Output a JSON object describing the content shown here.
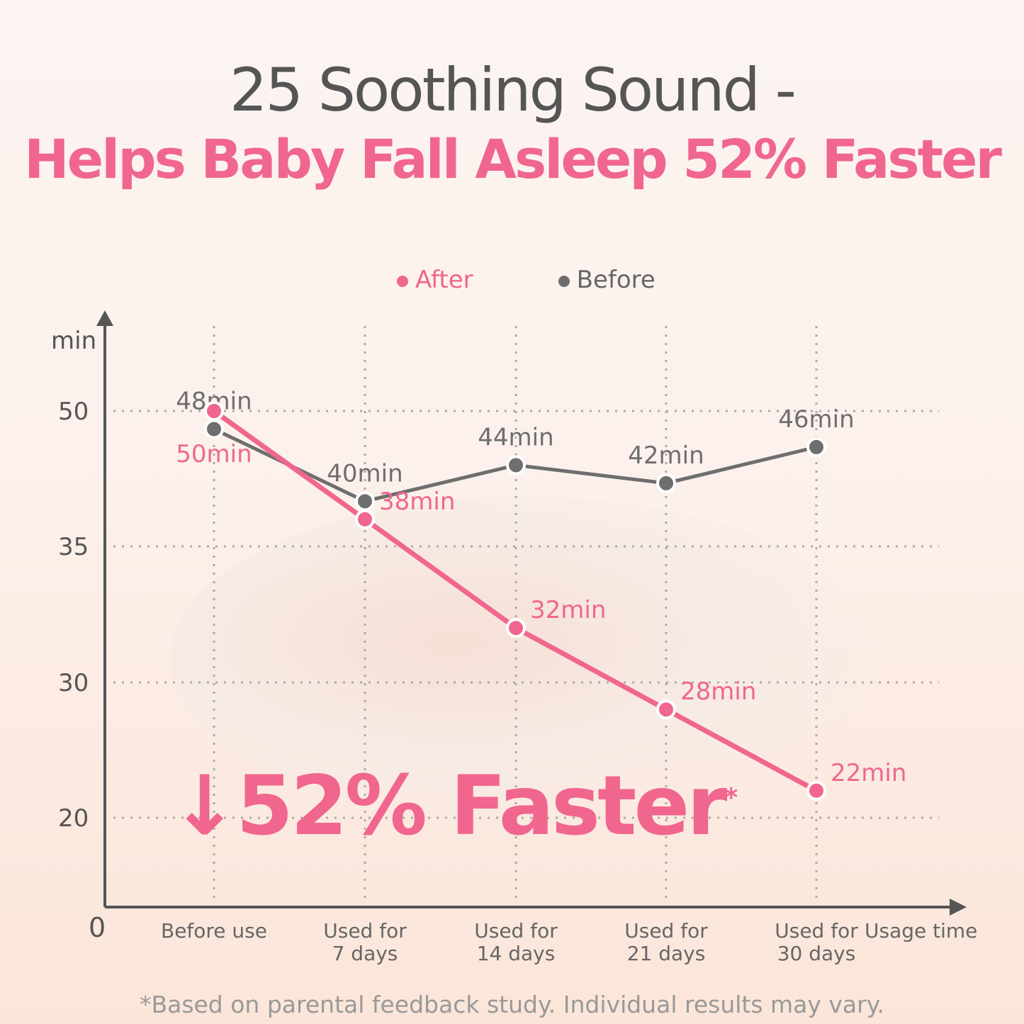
{
  "title_line1": "25 Soothing Sound -",
  "title_line2": "Helps Baby Fall Asleep 52% Faster",
  "legend": [
    {
      "label": "After",
      "color": "#f0668e"
    },
    {
      "label": "Before",
      "color": "#6e6e6e"
    }
  ],
  "callout": {
    "text": "↓52% Faster",
    "mark": "*"
  },
  "footnote": "*Based on parental feedback study. Individual results may vary.",
  "chart_data": {
    "type": "line",
    "ylabel": "min",
    "xlabel": "Usage time",
    "categories": [
      "Before use",
      "Used for\n7 days",
      "Used for\n14 days",
      "Used for\n21 days",
      "Used for\n30 days"
    ],
    "y_ticks": [
      0,
      20,
      30,
      35,
      50
    ],
    "grid": true,
    "legend_position": "top-center",
    "series": [
      {
        "name": "After",
        "color": "#f0668e",
        "values": [
          50,
          38,
          32,
          28,
          22
        ],
        "labels": [
          "50min",
          "38min",
          "32min",
          "28min",
          "22min"
        ]
      },
      {
        "name": "Before",
        "color": "#6e6e6e",
        "values": [
          48,
          40,
          44,
          42,
          46
        ],
        "labels": [
          "48min",
          "40min",
          "44min",
          "42min",
          "46min"
        ]
      }
    ]
  }
}
